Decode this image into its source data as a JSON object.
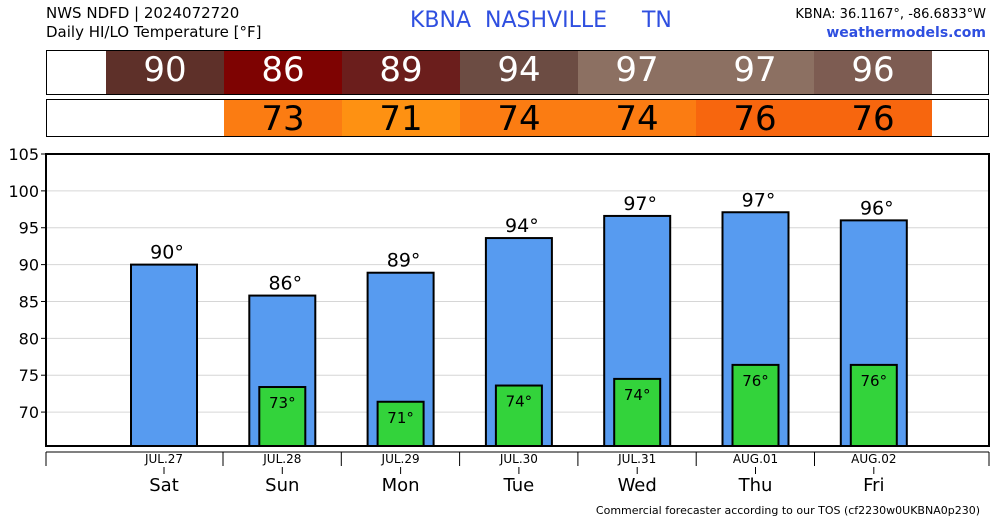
{
  "header": {
    "line1": "NWS NDFD | 2024072720",
    "line2": "Daily HI/LO Temperature [°F]",
    "station": "KBNA",
    "city": "NASHVILLE",
    "state": "TN",
    "coords": "KBNA: 36.1167°, -86.6833°W",
    "site": "weathermodels.com"
  },
  "hi_strip": [
    {
      "value": "90",
      "color": "#5e3029"
    },
    {
      "value": "86",
      "color": "#7e0302"
    },
    {
      "value": "89",
      "color": "#6b1e1c"
    },
    {
      "value": "94",
      "color": "#6c4c43"
    },
    {
      "value": "97",
      "color": "#8c7062"
    },
    {
      "value": "97",
      "color": "#8c7062"
    },
    {
      "value": "96",
      "color": "#7d5c52"
    }
  ],
  "lo_strip": [
    {
      "value": "",
      "color": "#ffffff"
    },
    {
      "value": "73",
      "color": "#fb7c12"
    },
    {
      "value": "71",
      "color": "#fe9112"
    },
    {
      "value": "74",
      "color": "#fb7c12"
    },
    {
      "value": "74",
      "color": "#fb7c12"
    },
    {
      "value": "76",
      "color": "#f7660e"
    },
    {
      "value": "76",
      "color": "#f7660e"
    }
  ],
  "colors": {
    "hi_bar": "#579bf0",
    "lo_bar": "#33d33b"
  },
  "chart_data": {
    "type": "bar",
    "categories": [
      "Sat",
      "Sun",
      "Mon",
      "Tue",
      "Wed",
      "Thu",
      "Fri"
    ],
    "dates": [
      "JUL.27",
      "JUL.28",
      "JUL.29",
      "JUL.30",
      "JUL.31",
      "AUG.01",
      "AUG.02"
    ],
    "series": [
      {
        "values": [
          90,
          86,
          89,
          94,
          97,
          97,
          96
        ],
        "labels": [
          "90°",
          "86°",
          "89°",
          "94°",
          "97°",
          "97°",
          "96°"
        ]
      },
      {
        "values": [
          null,
          73,
          71,
          74,
          74,
          76,
          76
        ],
        "labels": [
          "",
          "73°",
          "71°",
          "74°",
          "74°",
          "76°",
          "76°"
        ]
      }
    ],
    "hi_heights": [
      90,
      85.8,
      88.9,
      93.6,
      96.6,
      97.1,
      96.0
    ],
    "lo_heights": [
      null,
      73.4,
      71.4,
      73.6,
      74.5,
      76.4,
      76.4
    ],
    "yticks": [
      "70",
      "75",
      "80",
      "85",
      "90",
      "95",
      "100",
      "105"
    ],
    "ylim": [
      65.4,
      105
    ],
    "grid": true
  },
  "footer": "Commercial forecaster according to our TOS (cf2230w0UKBNA0p230)"
}
